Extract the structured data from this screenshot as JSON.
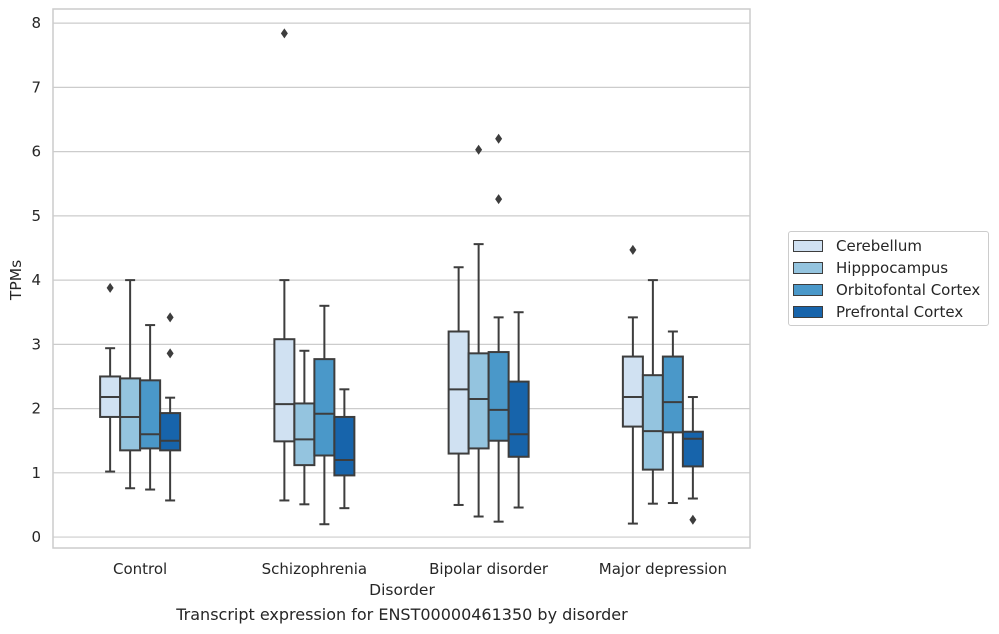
{
  "chart_data": {
    "type": "box",
    "title": "Transcript expression for ENST00000461350 by disorder",
    "xlabel": "Disorder",
    "ylabel": "TPMs",
    "ylim": [
      -0.17,
      8.22
    ],
    "yticks": [
      0,
      1,
      2,
      3,
      4,
      5,
      6,
      7,
      8
    ],
    "grid": true,
    "legend_position": "right",
    "categories": [
      "Control",
      "Schizophrenia",
      "Bipolar disorder",
      "Major depression"
    ],
    "series": [
      {
        "name": "Cerebellum",
        "color": "#d0e1f2",
        "boxes": [
          {
            "whislo": 1.02,
            "q1": 1.87,
            "med": 2.18,
            "q3": 2.5,
            "whishi": 2.94,
            "fliers": [
              3.88
            ]
          },
          {
            "whislo": 0.57,
            "q1": 1.49,
            "med": 2.07,
            "q3": 3.08,
            "whishi": 4.0,
            "fliers": [
              7.84
            ]
          },
          {
            "whislo": 0.5,
            "q1": 1.3,
            "med": 2.3,
            "q3": 3.2,
            "whishi": 4.2,
            "fliers": []
          },
          {
            "whislo": 0.21,
            "q1": 1.72,
            "med": 2.18,
            "q3": 2.81,
            "whishi": 3.42,
            "fliers": [
              4.47
            ]
          }
        ]
      },
      {
        "name": "Hipppocampus",
        "color": "#94c4df",
        "boxes": [
          {
            "whislo": 0.76,
            "q1": 1.35,
            "med": 1.87,
            "q3": 2.47,
            "whishi": 4.0,
            "fliers": []
          },
          {
            "whislo": 0.51,
            "q1": 1.12,
            "med": 1.52,
            "q3": 2.08,
            "whishi": 2.9,
            "fliers": []
          },
          {
            "whislo": 0.32,
            "q1": 1.38,
            "med": 2.15,
            "q3": 2.86,
            "whishi": 4.56,
            "fliers": [
              6.03
            ]
          },
          {
            "whislo": 0.52,
            "q1": 1.05,
            "med": 1.65,
            "q3": 2.52,
            "whishi": 4.0,
            "fliers": []
          }
        ]
      },
      {
        "name": "Orbitofontal Cortex",
        "color": "#4a98c9",
        "boxes": [
          {
            "whislo": 0.74,
            "q1": 1.38,
            "med": 1.6,
            "q3": 2.44,
            "whishi": 3.3,
            "fliers": []
          },
          {
            "whislo": 0.2,
            "q1": 1.27,
            "med": 1.92,
            "q3": 2.77,
            "whishi": 3.6,
            "fliers": []
          },
          {
            "whislo": 0.24,
            "q1": 1.5,
            "med": 1.98,
            "q3": 2.88,
            "whishi": 3.42,
            "fliers": [
              6.2,
              5.26
            ]
          },
          {
            "whislo": 0.53,
            "q1": 1.63,
            "med": 2.1,
            "q3": 2.81,
            "whishi": 3.2,
            "fliers": []
          }
        ]
      },
      {
        "name": "Prefrontal Cortex",
        "color": "#1764ab",
        "boxes": [
          {
            "whislo": 0.57,
            "q1": 1.35,
            "med": 1.5,
            "q3": 1.93,
            "whishi": 2.17,
            "fliers": [
              3.42,
              2.86
            ]
          },
          {
            "whislo": 0.45,
            "q1": 0.96,
            "med": 1.2,
            "q3": 1.87,
            "whishi": 2.3,
            "fliers": []
          },
          {
            "whislo": 0.46,
            "q1": 1.25,
            "med": 1.6,
            "q3": 2.42,
            "whishi": 3.5,
            "fliers": []
          },
          {
            "whislo": 0.6,
            "q1": 1.1,
            "med": 1.53,
            "q3": 1.64,
            "whishi": 2.18,
            "fliers": [
              0.27
            ]
          }
        ]
      }
    ]
  }
}
